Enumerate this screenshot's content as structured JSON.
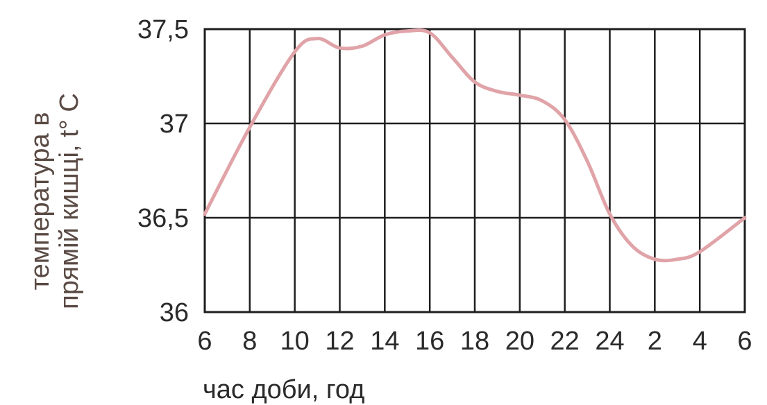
{
  "chart_data": {
    "type": "line",
    "title": "",
    "xlabel": "час доби, год",
    "ylabel_line1": "температура в",
    "ylabel_line2": "прямій кишці, t° C",
    "x_ticks": [
      "6",
      "8",
      "10",
      "12",
      "14",
      "16",
      "18",
      "20",
      "22",
      "24",
      "2",
      "4",
      "6"
    ],
    "y_ticks": [
      "36",
      "36,5",
      "37",
      "37,5"
    ],
    "ylim": [
      36,
      37.5
    ],
    "grid": true,
    "series": [
      {
        "color": "#e0a3a8",
        "x": [
          "6",
          "8",
          "10",
          "11",
          "12",
          "13",
          "14",
          "15",
          "16",
          "17",
          "18",
          "19",
          "20",
          "21",
          "22",
          "23",
          "24",
          "1",
          "2",
          "3",
          "4",
          "6"
        ],
        "y": [
          36.52,
          36.98,
          37.38,
          37.45,
          37.4,
          37.41,
          37.47,
          37.49,
          37.48,
          37.35,
          37.22,
          37.17,
          37.15,
          37.12,
          37.02,
          36.8,
          36.52,
          36.35,
          36.28,
          36.28,
          36.32,
          36.5
        ]
      }
    ]
  }
}
